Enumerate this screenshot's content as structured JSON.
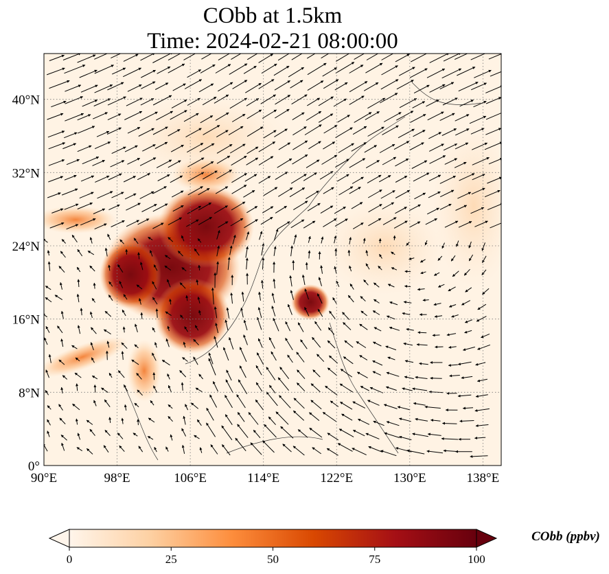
{
  "title": {
    "line1": "CObb at 1.5km",
    "line2": "Time: 2024-02-21 08:00:00"
  },
  "map": {
    "lon_range": [
      90,
      140
    ],
    "lat_range": [
      0,
      45
    ],
    "x_ticks": [
      "90°E",
      "98°E",
      "106°E",
      "114°E",
      "122°E",
      "130°E",
      "138°E"
    ],
    "x_tick_values": [
      90,
      98,
      106,
      114,
      122,
      130,
      138
    ],
    "y_ticks": [
      "0°",
      "8°N",
      "16°N",
      "24°N",
      "32°N",
      "40°N"
    ],
    "y_tick_values": [
      0,
      8,
      16,
      24,
      32,
      40
    ],
    "gridlines": "dotted"
  },
  "colorbar": {
    "label": "CObb (ppbv)",
    "ticks": [
      "0",
      "25",
      "50",
      "75",
      "100"
    ],
    "tick_values": [
      0,
      25,
      50,
      75,
      100
    ],
    "range": [
      0,
      100
    ],
    "colormap": [
      "#fff5eb",
      "#fdd0a2",
      "#fd8d3c",
      "#d94801",
      "#a50f15",
      "#67000d"
    ],
    "extend": "both"
  }
}
